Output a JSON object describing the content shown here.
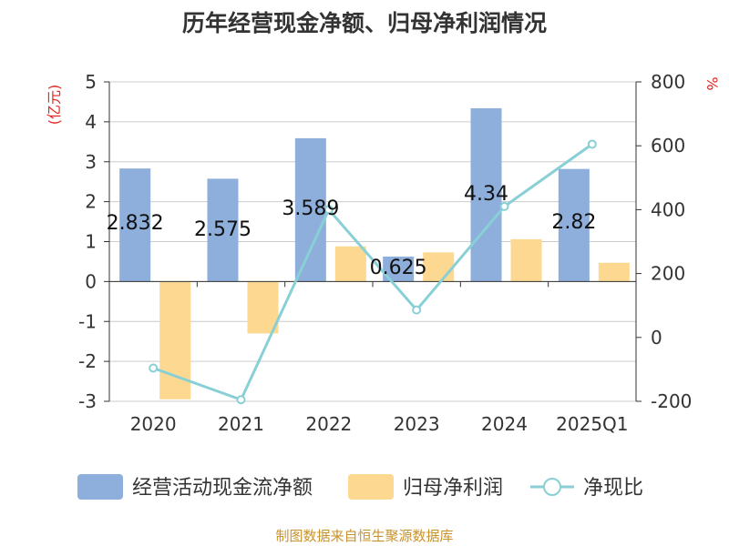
{
  "title": "历年经营现金净额、归母净利润情况",
  "source": "制图数据来自恒生聚源数据库",
  "colors": {
    "bar1": "#8eaedb",
    "bar2": "#fdd891",
    "line": "#88d0d6",
    "axis": "#333333",
    "grid": "#cccccc",
    "unit": "#e52521"
  },
  "chart_data": {
    "type": "bar",
    "categories": [
      "2020",
      "2021",
      "2022",
      "2023",
      "2024",
      "2025Q1"
    ],
    "left_axis": {
      "unit": "(亿元)",
      "ylim": [
        -3,
        5
      ],
      "ticks": [
        "5",
        "4",
        "3",
        "2",
        "1",
        "0",
        "-1",
        "-2",
        "-3"
      ]
    },
    "right_axis": {
      "unit": "%",
      "ylim": [
        -200,
        800
      ],
      "ticks": [
        "800",
        "600",
        "400",
        "200",
        "0",
        "-200"
      ]
    },
    "grid": true,
    "legend_position": "bottom",
    "series": [
      {
        "name": "经营活动现金流净额",
        "type": "bar",
        "axis": "left",
        "values": [
          2.832,
          2.575,
          3.589,
          0.625,
          4.34,
          2.82
        ],
        "labels": [
          "2.832",
          "2.575",
          "3.589",
          "0.625",
          "4.34",
          "2.82"
        ]
      },
      {
        "name": "归母净利润",
        "type": "bar",
        "axis": "left",
        "values": [
          -2.95,
          -1.3,
          0.88,
          0.73,
          1.06,
          0.47
        ]
      },
      {
        "name": "净现比",
        "type": "line",
        "axis": "right",
        "values": [
          -96,
          -195,
          400,
          86,
          410,
          605
        ]
      }
    ]
  }
}
